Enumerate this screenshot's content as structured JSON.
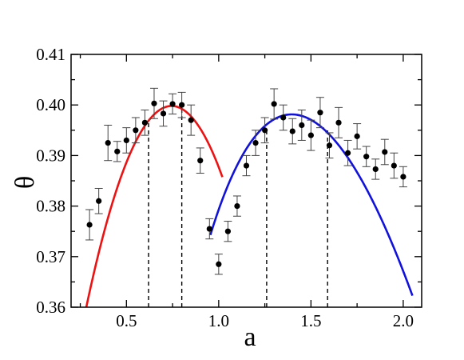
{
  "chart_data": {
    "type": "scatter",
    "xlabel": "a",
    "ylabel": "θ",
    "xlim": [
      0.2,
      2.1
    ],
    "ylim": [
      0.36,
      0.41
    ],
    "xticks": [
      0.5,
      1.0,
      1.5,
      2.0
    ],
    "xtick_labels": [
      "0.5",
      "1.0",
      "1.5",
      "2.0"
    ],
    "yticks": [
      0.36,
      0.37,
      0.38,
      0.39,
      0.4,
      0.41
    ],
    "ytick_labels": [
      "0.36",
      "0.37",
      "0.38",
      "0.39",
      "0.40",
      "0.41"
    ],
    "grid": false,
    "legend": null,
    "series": [
      {
        "kind": "points_with_error_bars",
        "color": "#000000",
        "points": [
          {
            "x": 0.3,
            "y": 0.3763,
            "err": 0.003
          },
          {
            "x": 0.35,
            "y": 0.381,
            "err": 0.0025
          },
          {
            "x": 0.4,
            "y": 0.3925,
            "err": 0.0035
          },
          {
            "x": 0.45,
            "y": 0.3908,
            "err": 0.002
          },
          {
            "x": 0.5,
            "y": 0.393,
            "err": 0.0025
          },
          {
            "x": 0.55,
            "y": 0.395,
            "err": 0.0025
          },
          {
            "x": 0.6,
            "y": 0.3965,
            "err": 0.0025
          },
          {
            "x": 0.65,
            "y": 0.4003,
            "err": 0.003
          },
          {
            "x": 0.7,
            "y": 0.3983,
            "err": 0.0025
          },
          {
            "x": 0.75,
            "y": 0.4002,
            "err": 0.002
          },
          {
            "x": 0.8,
            "y": 0.4,
            "err": 0.0025
          },
          {
            "x": 0.85,
            "y": 0.397,
            "err": 0.003
          },
          {
            "x": 0.9,
            "y": 0.389,
            "err": 0.0025
          },
          {
            "x": 0.95,
            "y": 0.3755,
            "err": 0.002
          },
          {
            "x": 1.0,
            "y": 0.3685,
            "err": 0.002
          },
          {
            "x": 1.05,
            "y": 0.375,
            "err": 0.002
          },
          {
            "x": 1.1,
            "y": 0.38,
            "err": 0.002
          },
          {
            "x": 1.15,
            "y": 0.388,
            "err": 0.002
          },
          {
            "x": 1.2,
            "y": 0.3925,
            "err": 0.0025
          },
          {
            "x": 1.25,
            "y": 0.395,
            "err": 0.0025
          },
          {
            "x": 1.3,
            "y": 0.4002,
            "err": 0.003
          },
          {
            "x": 1.35,
            "y": 0.3975,
            "err": 0.0025
          },
          {
            "x": 1.4,
            "y": 0.3948,
            "err": 0.0025
          },
          {
            "x": 1.45,
            "y": 0.396,
            "err": 0.003
          },
          {
            "x": 1.5,
            "y": 0.394,
            "err": 0.003
          },
          {
            "x": 1.55,
            "y": 0.3985,
            "err": 0.003
          },
          {
            "x": 1.6,
            "y": 0.392,
            "err": 0.0025
          },
          {
            "x": 1.65,
            "y": 0.3965,
            "err": 0.003
          },
          {
            "x": 1.7,
            "y": 0.3905,
            "err": 0.0025
          },
          {
            "x": 1.75,
            "y": 0.3938,
            "err": 0.0025
          },
          {
            "x": 1.8,
            "y": 0.3898,
            "err": 0.002
          },
          {
            "x": 1.85,
            "y": 0.3873,
            "err": 0.002
          },
          {
            "x": 1.9,
            "y": 0.3907,
            "err": 0.0025
          },
          {
            "x": 1.95,
            "y": 0.388,
            "err": 0.0025
          },
          {
            "x": 2.0,
            "y": 0.3858,
            "err": 0.002
          }
        ]
      },
      {
        "kind": "fit_curve",
        "color": "#ee1111",
        "model": "quadratic",
        "vertex": [
          0.745,
          0.3998
        ],
        "curvature": 0.186,
        "x_range": [
          0.25,
          1.02
        ]
      },
      {
        "kind": "fit_curve",
        "color": "#1111dd",
        "model": "quadratic_in_sqrt_x",
        "coefficients": [
          -0.4004,
          1.3518,
          -0.5721
        ],
        "x_range": [
          0.955,
          2.05
        ]
      }
    ],
    "dashed_lines": [
      {
        "x": 0.62,
        "y_top": 0.3965
      },
      {
        "x": 0.8,
        "y_top": 0.3992
      },
      {
        "x": 1.26,
        "y_top": 0.3953
      },
      {
        "x": 1.59,
        "y_top": 0.3955
      }
    ]
  }
}
